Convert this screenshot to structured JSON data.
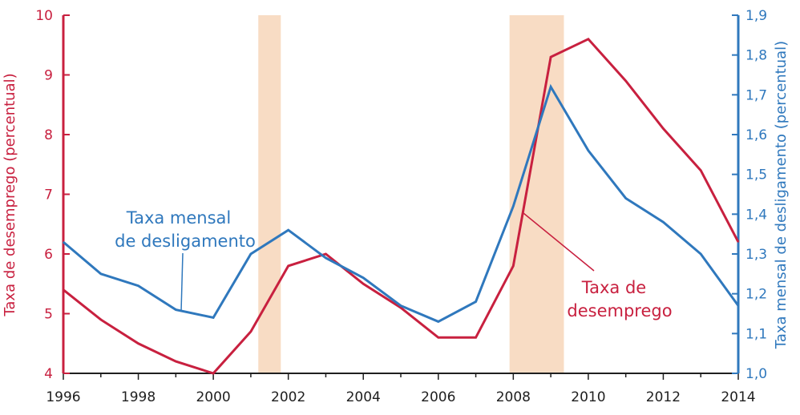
{
  "colors": {
    "unemployment": "#c8203f",
    "separation": "#2f78bd",
    "recession": "#f8dcc4",
    "axis_dark": "#1f1f1f"
  },
  "chart_data": {
    "type": "line",
    "x_ticks": [
      "1996",
      "1998",
      "2000",
      "2002",
      "2004",
      "2006",
      "2008",
      "2010",
      "2012",
      "2014"
    ],
    "y_left_ticks": [
      "4",
      "5",
      "6",
      "7",
      "8",
      "9",
      "10"
    ],
    "y_right_ticks": [
      "1,0",
      "1,1",
      "1,2",
      "1,3",
      "1,4",
      "1,5",
      "1,6",
      "1,7",
      "1,8",
      "1,9"
    ],
    "y_left_label": "Taxa de desemprego (percentual)",
    "y_right_label": "Taxa mensal de desligamento (percentual)",
    "xlim": [
      1996,
      2014
    ],
    "ylim_left": [
      4,
      10
    ],
    "ylim_right": [
      1.0,
      1.9
    ],
    "recessions": [
      [
        2001.2,
        2001.8
      ],
      [
        2007.9,
        2009.35
      ]
    ],
    "series": [
      {
        "name": "Taxa de desemprego",
        "axis": "left",
        "x": [
          1996,
          1997,
          1998,
          1999,
          2000,
          2001,
          2002,
          2003,
          2004,
          2005,
          2006,
          2007,
          2008,
          2009,
          2010,
          2011,
          2012,
          2013,
          2014
        ],
        "values": [
          5.4,
          4.9,
          4.5,
          4.2,
          4.0,
          4.7,
          5.8,
          6.0,
          5.5,
          5.1,
          4.6,
          4.6,
          5.8,
          9.3,
          9.6,
          8.9,
          8.1,
          7.4,
          6.2
        ]
      },
      {
        "name": "Taxa mensal de desligamento",
        "axis": "right",
        "x": [
          1996,
          1997,
          1998,
          1999,
          2000,
          2001,
          2002,
          2003,
          2004,
          2005,
          2006,
          2007,
          2008,
          2009,
          2010,
          2011,
          2012,
          2013,
          2014
        ],
        "values": [
          1.33,
          1.25,
          1.22,
          1.16,
          1.14,
          1.3,
          1.36,
          1.29,
          1.24,
          1.17,
          1.13,
          1.18,
          1.42,
          1.72,
          1.56,
          1.44,
          1.38,
          1.3,
          1.17
        ]
      }
    ],
    "annotations": {
      "separation_label": [
        "Taxa mensal",
        "de desligamento"
      ],
      "unemployment_label": [
        "Taxa de",
        "desemprego"
      ]
    }
  }
}
